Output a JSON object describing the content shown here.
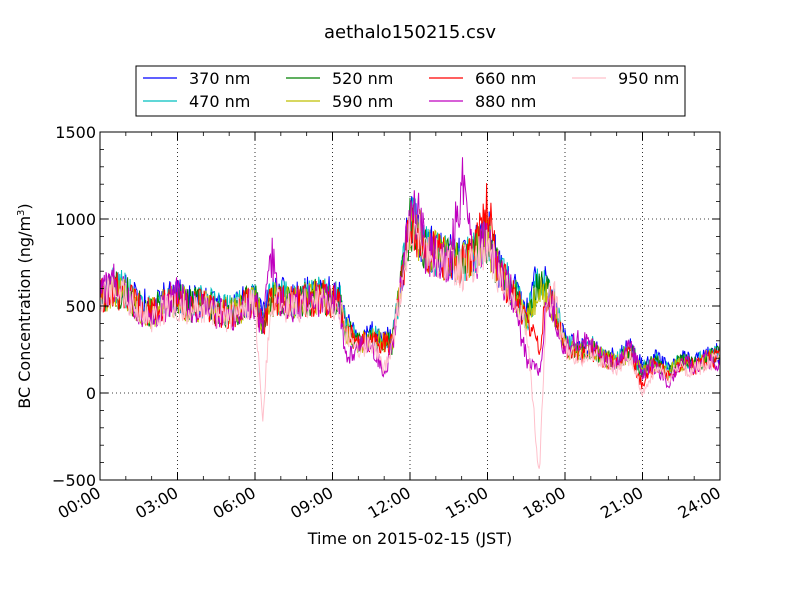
{
  "chart_data": {
    "type": "line",
    "title": "aethalo150215.csv",
    "xlabel": "Time on 2015-02-15 (JST)",
    "ylabel_main": "BC Concentration (ng/m",
    "ylabel_sup": "3",
    "ylabel_close": ")",
    "x_unit": "hours",
    "xlim": [
      0,
      24
    ],
    "ylim": [
      -500,
      1500
    ],
    "xticks": [
      0,
      3,
      6,
      9,
      12,
      15,
      18,
      21,
      24
    ],
    "xtick_labels": [
      "00:00",
      "03:00",
      "06:00",
      "09:00",
      "12:00",
      "15:00",
      "18:00",
      "21:00",
      "24:00"
    ],
    "yticks": [
      -500,
      0,
      500,
      1000,
      1500
    ],
    "ytick_labels": [
      "−500",
      "0",
      "500",
      "1000",
      "1500"
    ],
    "grid": true,
    "legend_position": "top",
    "x": [
      0.0,
      0.5,
      1.0,
      1.5,
      2.0,
      2.5,
      3.0,
      3.5,
      4.0,
      4.5,
      5.0,
      5.5,
      6.0,
      6.3,
      6.6,
      7.0,
      7.5,
      8.0,
      8.5,
      9.0,
      9.3,
      9.5,
      10.0,
      10.5,
      11.0,
      11.3,
      11.6,
      12.0,
      12.3,
      12.6,
      13.0,
      13.5,
      14.0,
      14.5,
      15.0,
      15.5,
      16.0,
      16.5,
      17.0,
      17.3,
      17.6,
      18.0,
      18.5,
      19.0,
      19.5,
      20.0,
      20.5,
      21.0,
      21.5,
      22.0,
      22.5,
      23.0,
      23.5,
      24.0
    ],
    "series": [
      {
        "name": "370 nm",
        "color": "#0000ff",
        "values": [
          580,
          620,
          600,
          520,
          480,
          540,
          560,
          520,
          540,
          500,
          480,
          520,
          560,
          420,
          560,
          560,
          540,
          560,
          580,
          560,
          540,
          400,
          300,
          340,
          320,
          300,
          600,
          1000,
          950,
          850,
          820,
          780,
          760,
          820,
          920,
          700,
          600,
          440,
          700,
          620,
          500,
          300,
          250,
          280,
          220,
          200,
          260,
          150,
          200,
          140,
          200,
          180,
          220,
          240
        ]
      },
      {
        "name": "470 nm",
        "color": "#00bfbf",
        "values": [
          570,
          610,
          590,
          510,
          470,
          530,
          550,
          510,
          530,
          490,
          470,
          510,
          550,
          410,
          550,
          550,
          530,
          550,
          570,
          550,
          530,
          390,
          290,
          330,
          310,
          290,
          590,
          990,
          940,
          840,
          810,
          770,
          750,
          810,
          900,
          690,
          590,
          430,
          640,
          600,
          490,
          290,
          240,
          270,
          210,
          190,
          250,
          140,
          190,
          130,
          190,
          170,
          210,
          230
        ]
      },
      {
        "name": "520 nm",
        "color": "#008000",
        "values": [
          560,
          600,
          580,
          500,
          460,
          520,
          540,
          500,
          520,
          480,
          460,
          500,
          540,
          400,
          540,
          540,
          520,
          540,
          560,
          540,
          520,
          380,
          280,
          320,
          300,
          280,
          580,
          980,
          930,
          830,
          800,
          760,
          740,
          800,
          890,
          680,
          580,
          420,
          620,
          580,
          480,
          280,
          230,
          260,
          200,
          180,
          240,
          130,
          180,
          120,
          180,
          160,
          200,
          220
        ]
      },
      {
        "name": "590 nm",
        "color": "#bfbf00",
        "values": [
          555,
          595,
          575,
          495,
          455,
          515,
          535,
          495,
          515,
          475,
          455,
          495,
          535,
          395,
          535,
          535,
          515,
          535,
          555,
          535,
          515,
          375,
          275,
          315,
          295,
          275,
          575,
          975,
          925,
          825,
          795,
          755,
          735,
          795,
          885,
          675,
          575,
          415,
          600,
          570,
          475,
          275,
          225,
          255,
          195,
          175,
          235,
          125,
          175,
          115,
          175,
          155,
          195,
          215
        ]
      },
      {
        "name": "660 nm",
        "color": "#ff0000",
        "values": [
          550,
          590,
          570,
          490,
          450,
          510,
          530,
          490,
          510,
          470,
          450,
          490,
          530,
          390,
          530,
          530,
          510,
          530,
          550,
          530,
          510,
          370,
          270,
          310,
          290,
          270,
          570,
          1000,
          920,
          820,
          790,
          750,
          730,
          790,
          1080,
          670,
          570,
          400,
          260,
          560,
          470,
          270,
          220,
          250,
          190,
          170,
          230,
          40,
          170,
          110,
          170,
          150,
          190,
          210
        ]
      },
      {
        "name": "880 nm",
        "color": "#bf00bf",
        "values": [
          540,
          640,
          560,
          480,
          440,
          500,
          580,
          480,
          500,
          460,
          440,
          480,
          520,
          350,
          820,
          520,
          500,
          520,
          540,
          560,
          500,
          200,
          260,
          300,
          100,
          260,
          560,
          1020,
          1060,
          800,
          780,
          740,
          1200,
          760,
          880,
          660,
          560,
          200,
          110,
          550,
          450,
          260,
          300,
          280,
          200,
          160,
          260,
          120,
          160,
          40,
          200,
          140,
          200,
          160
        ]
      },
      {
        "name": "950 nm",
        "color": "#ffc0cb",
        "values": [
          530,
          580,
          550,
          470,
          430,
          490,
          510,
          470,
          490,
          450,
          430,
          470,
          510,
          -150,
          520,
          510,
          490,
          510,
          530,
          510,
          490,
          350,
          250,
          290,
          150,
          250,
          550,
          960,
          910,
          800,
          770,
          730,
          710,
          770,
          860,
          650,
          550,
          380,
          -450,
          540,
          550,
          250,
          200,
          230,
          170,
          150,
          210,
          0,
          150,
          90,
          150,
          130,
          170,
          190
        ]
      }
    ]
  }
}
